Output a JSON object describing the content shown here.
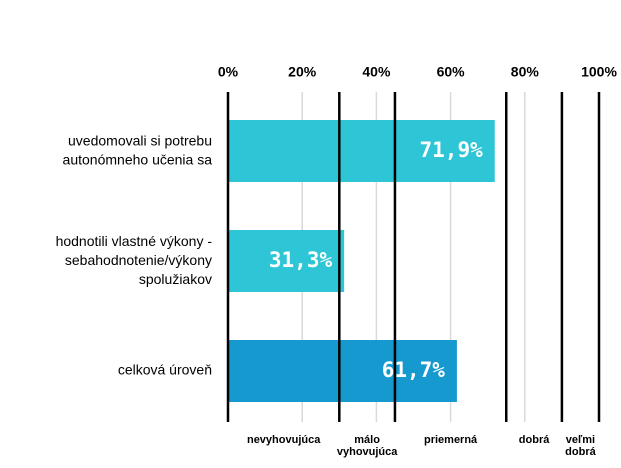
{
  "chart_data": {
    "type": "hbar",
    "categories": [
      "uvedomovali  si potrebu\nautonómneho učenia sa",
      "hodnotili vlastné výkony -\nsebahodnotenie/výkony\nspolužiakov",
      "celková úroveň"
    ],
    "values": [
      71.9,
      31.3,
      61.7
    ],
    "value_labels": [
      "71,9%",
      "31,3%",
      "61,7%"
    ],
    "colors": [
      "#2ec6d6",
      "#2ec6d6",
      "#1599cf"
    ],
    "xlim": [
      0,
      100
    ],
    "xticks": [
      {
        "value": 0,
        "label": "0%"
      },
      {
        "value": 20,
        "label": "20%"
      },
      {
        "value": 40,
        "label": "40%"
      },
      {
        "value": 60,
        "label": "60%"
      },
      {
        "value": 80,
        "label": "80%"
      },
      {
        "value": 100,
        "label": "100%"
      }
    ],
    "grid": true,
    "bands": [
      {
        "label": "nevyhovujúca",
        "from": 0,
        "to": 30
      },
      {
        "label": "málo\nvyhovujúca",
        "from": 30,
        "to": 45
      },
      {
        "label": "priemerná",
        "from": 45,
        "to": 75
      },
      {
        "label": "dobrá",
        "from": 75,
        "to": 90
      },
      {
        "label": "veľmi\ndobrá",
        "from": 90,
        "to": 100
      }
    ]
  }
}
